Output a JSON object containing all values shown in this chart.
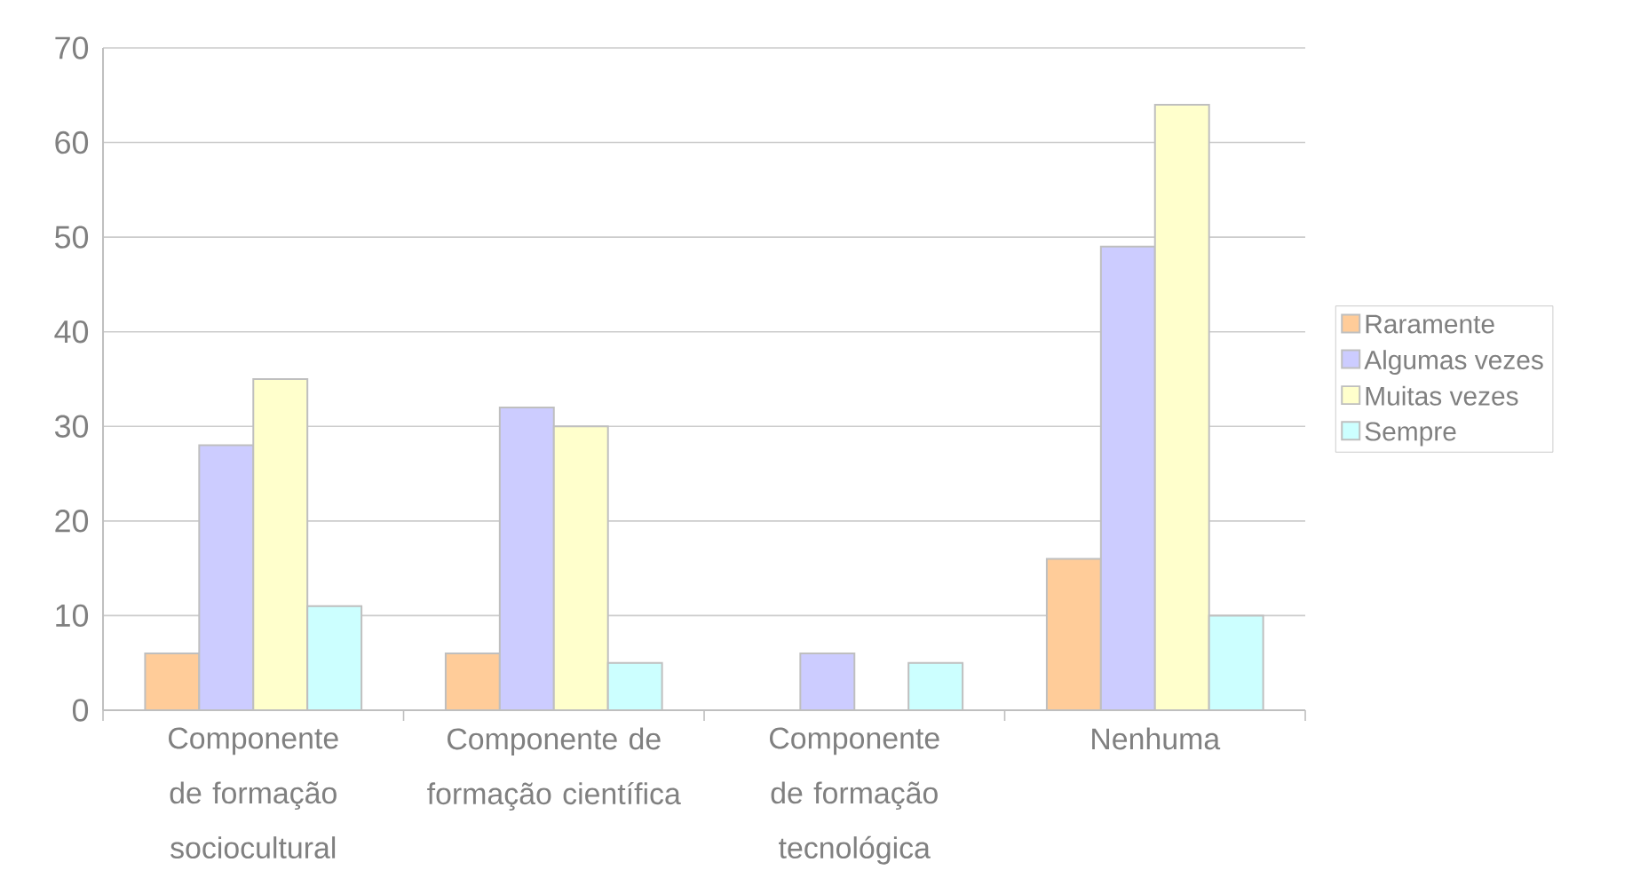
{
  "chart_data": {
    "type": "bar",
    "categories": [
      "Componente de formação sociocultural",
      "Componente de formação científica",
      "Componente de formação tecnológica",
      "Nenhuma"
    ],
    "series": [
      {
        "name": "Raramente",
        "color": "#ffcc99",
        "values": [
          6,
          6,
          0,
          16
        ]
      },
      {
        "name": "Algumas vezes",
        "color": "#ccccff",
        "values": [
          28,
          32,
          6,
          49
        ]
      },
      {
        "name": "Muitas vezes",
        "color": "#ffffcc",
        "values": [
          35,
          30,
          0,
          64
        ]
      },
      {
        "name": "Sempre",
        "color": "#ccffff",
        "values": [
          11,
          5,
          5,
          10
        ]
      }
    ],
    "ylim": [
      0,
      70
    ],
    "yticks": [
      0,
      10,
      20,
      30,
      40,
      50,
      60,
      70
    ],
    "grid": "y",
    "legend": "right"
  }
}
